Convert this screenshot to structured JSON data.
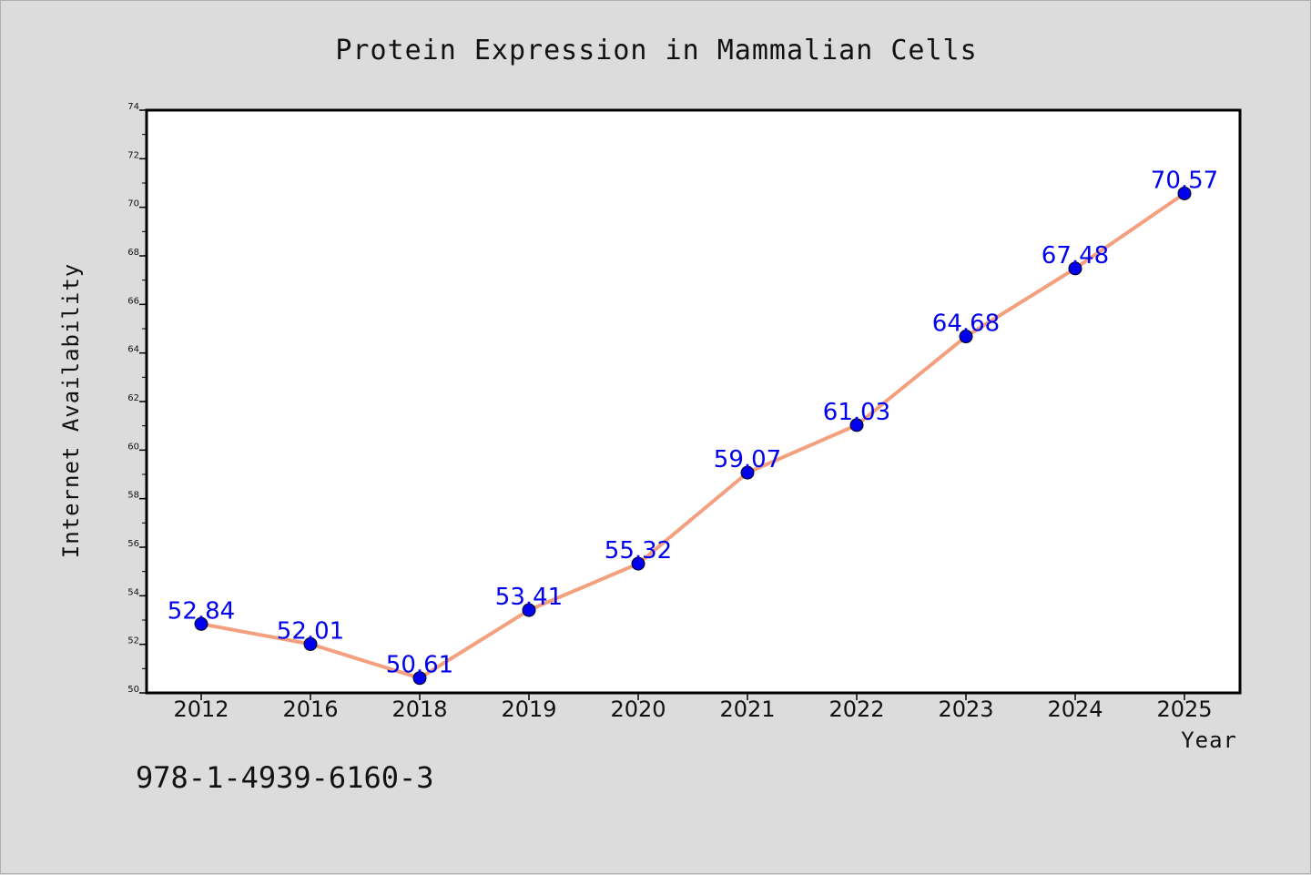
{
  "chart_data": {
    "type": "line",
    "title": "Protein Expression in Mammalian Cells",
    "xlabel": "Year",
    "ylabel": "Internet Availability",
    "categories": [
      "2012",
      "2016",
      "2018",
      "2019",
      "2020",
      "2021",
      "2022",
      "2023",
      "2024",
      "2025"
    ],
    "values": [
      52.84,
      52.01,
      50.61,
      53.41,
      55.32,
      59.07,
      61.03,
      64.68,
      67.48,
      70.57
    ],
    "data_labels": [
      "52.84",
      "52.01",
      "50.61",
      "53.41",
      "55.32",
      "59.07",
      "61.03",
      "64.68",
      "67.48",
      "70.57"
    ],
    "ylim": [
      50,
      74
    ],
    "yticks": [
      50,
      52,
      54,
      56,
      58,
      60,
      62,
      64,
      66,
      68,
      70,
      72,
      74
    ],
    "grid": false,
    "line_color": "#f4a07e",
    "marker_color": "#0000ee",
    "label_color": "#0000ee"
  },
  "annotation": "978-1-4939-6160-3"
}
